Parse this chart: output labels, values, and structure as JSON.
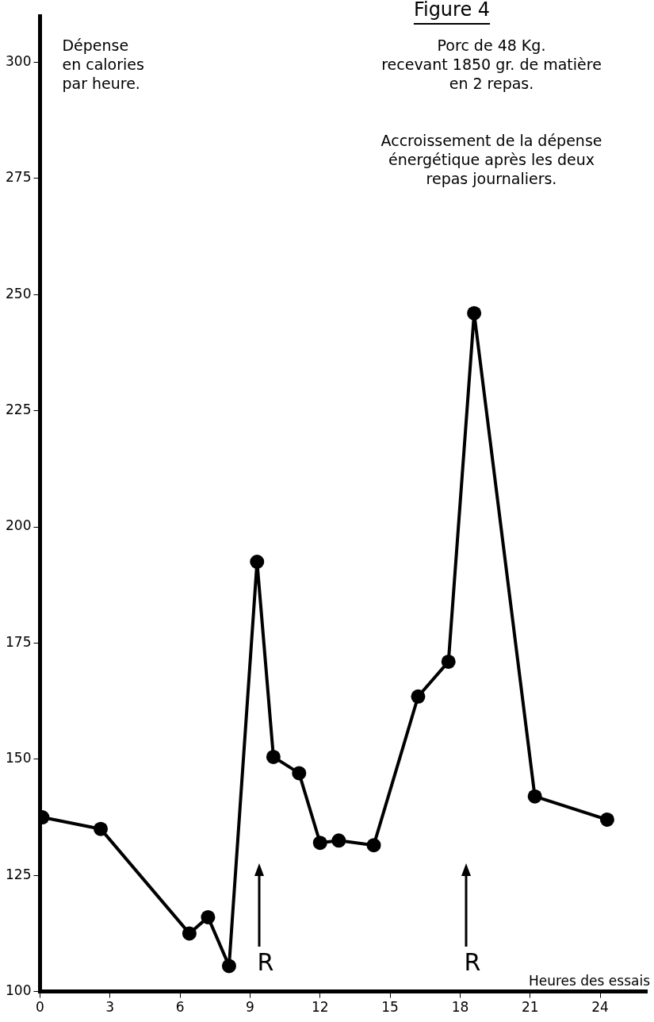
{
  "chart_data": {
    "type": "line",
    "title": "Figure 4",
    "subtitle": "Porc de 48 Kg.\nrecevant 1850 gr. de matière\nen 2 repas.",
    "ylabel": "Dépense\nen calories\npar heure.",
    "xlabel": "Heures des essais",
    "annotations": [
      "Accroissement de la dépense\nénergétique après les deux\nrepas journaliers.",
      "R",
      "R"
    ],
    "x": [
      0.1,
      2.6,
      6.4,
      7.2,
      8.1,
      9.3,
      10.0,
      11.1,
      12.0,
      12.8,
      14.3,
      16.2,
      17.5,
      18.6,
      21.2,
      24.3
    ],
    "series": [
      {
        "color": "#000000",
        "values": [
          137.5,
          135,
          112.5,
          116,
          105.5,
          192.5,
          150.5,
          147,
          132,
          132.5,
          131.5,
          163.5,
          171,
          246,
          142,
          137
        ]
      }
    ],
    "xlim": [
      0,
      26
    ],
    "xticks": [
      0,
      3,
      6,
      9,
      12,
      15,
      18,
      21,
      24
    ],
    "ylim": [
      100,
      310
    ],
    "yticks": [
      100,
      125,
      150,
      175,
      200,
      225,
      250,
      275,
      300
    ],
    "grid": false,
    "legend": false,
    "marker": "circle",
    "line_style": "solid"
  }
}
